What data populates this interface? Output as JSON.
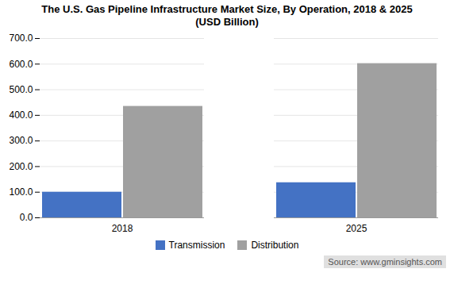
{
  "chart_data": {
    "type": "bar",
    "title": "The U.S. Gas Pipeline Infrastructure Market Size, By Operation, 2018 & 2025\n(USD Billion)",
    "categories": [
      "2018",
      "2025"
    ],
    "series": [
      {
        "name": "Transmission",
        "color": "#4472C4",
        "values": [
          100.0,
          137.0
        ]
      },
      {
        "name": "Distribution",
        "color": "#A0A0A0",
        "values": [
          435.0,
          602.0
        ]
      }
    ],
    "ylim": [
      0,
      700
    ],
    "yticks": [
      {
        "value": 0,
        "label": "0.0"
      },
      {
        "value": 100,
        "label": "100.0"
      },
      {
        "value": 200,
        "label": "200.0"
      },
      {
        "value": 300,
        "label": "300.0"
      },
      {
        "value": 400,
        "label": "400.0"
      },
      {
        "value": 500,
        "label": "500.0"
      },
      {
        "value": 600,
        "label": "600.0"
      },
      {
        "value": 700,
        "label": "700.0"
      }
    ],
    "grid": true,
    "legend": "bottom",
    "annotations": [
      "Source: www.gminsights.com"
    ]
  }
}
